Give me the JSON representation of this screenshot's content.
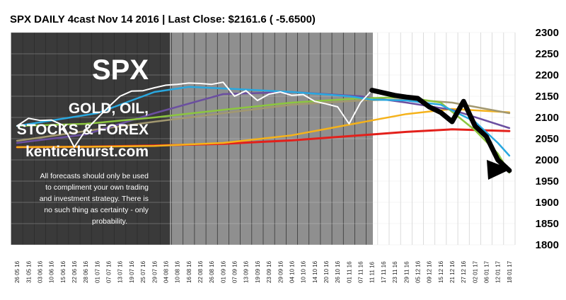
{
  "chart_data": {
    "type": "line",
    "title": "SPX DAILY 4cast  Nov 14 2016 | Last Close: $2161.6 ( -5.6500)",
    "ylim": [
      1800,
      2300
    ],
    "y_ticks": [
      2300,
      2250,
      2200,
      2150,
      2100,
      2050,
      2000,
      1950,
      1900,
      1850,
      1800
    ],
    "x_ticks": [
      "26 05 16",
      "31 05 16",
      "03 06 16",
      "10 06 16",
      "15 06 16",
      "22 06 16",
      "28 06 16",
      "01 07 16",
      "07 07 16",
      "13 07 16",
      "19 07 16",
      "25 07 16",
      "29 07 16",
      "04 08 16",
      "10 08 16",
      "16 08 16",
      "22 08 16",
      "26 08 16",
      "01 09 16",
      "07 09 16",
      "13 09 16",
      "19 09 16",
      "23 09 16",
      "29 09 16",
      "04 10 16",
      "10 10 16",
      "14 10 16",
      "20 10 16",
      "26 10 16",
      "01 11 16",
      "07 11 16",
      "11 11 16",
      "17 11 16",
      "23 11 16",
      "29 11 16",
      "05 12 16",
      "09 12 16",
      "15 12 16",
      "21 12 16",
      "27 12 16",
      "02 01 17",
      "06 01 17",
      "12 01 17",
      "18 01 17"
    ],
    "grid": true,
    "series": [
      {
        "color": "#ffffff",
        "x": [
          0,
          1,
          2,
          3,
          4,
          5,
          6,
          7,
          8,
          9,
          10,
          11,
          12,
          13,
          14,
          15,
          16,
          17,
          18,
          19,
          20,
          21,
          22,
          23,
          24,
          25,
          26,
          27,
          28,
          29,
          30,
          31
        ],
        "values": [
          2080,
          2098,
          2093,
          2094,
          2082,
          2030,
          2070,
          2098,
          2125,
          2150,
          2162,
          2163,
          2170,
          2176,
          2178,
          2181,
          2180,
          2178,
          2183,
          2150,
          2163,
          2140,
          2155,
          2160,
          2152,
          2154,
          2138,
          2132,
          2125,
          2085,
          2135,
          2164
        ]
      },
      {
        "color": "#000000",
        "x": [
          31,
          32,
          33,
          34,
          35,
          36,
          37,
          38,
          39,
          40,
          41,
          42,
          43
        ],
        "values": [
          2164,
          2158,
          2152,
          2148,
          2145,
          2125,
          2112,
          2090,
          2138,
          2080,
          2055,
          2000,
          1975
        ]
      },
      {
        "color": "#29a8e0",
        "x": [
          0,
          7,
          12,
          15,
          19,
          24,
          29,
          31,
          34,
          37,
          40,
          42,
          43
        ],
        "values": [
          2080,
          2110,
          2160,
          2172,
          2167,
          2160,
          2150,
          2142,
          2140,
          2130,
          2090,
          2040,
          2010
        ]
      },
      {
        "color": "#8cc63f",
        "x": [
          0,
          6,
          12,
          18,
          24,
          30,
          34,
          37,
          40,
          42,
          43
        ],
        "values": [
          2080,
          2085,
          2100,
          2118,
          2135,
          2145,
          2148,
          2135,
          2070,
          2015,
          1970
        ]
      },
      {
        "color": "#6b4fa0",
        "x": [
          0,
          6,
          12,
          18,
          24,
          30,
          34,
          38,
          43
        ],
        "values": [
          2040,
          2060,
          2110,
          2155,
          2160,
          2150,
          2135,
          2118,
          2075
        ]
      },
      {
        "color": "#a29870",
        "x": [
          0,
          6,
          12,
          18,
          24,
          30,
          34,
          38,
          43
        ],
        "values": [
          2045,
          2068,
          2090,
          2110,
          2130,
          2140,
          2143,
          2135,
          2110
        ]
      },
      {
        "color": "#f5b21a",
        "x": [
          0,
          6,
          12,
          18,
          24,
          30,
          34,
          38,
          43
        ],
        "values": [
          2030,
          2031,
          2033,
          2040,
          2058,
          2088,
          2108,
          2120,
          2112
        ]
      },
      {
        "color": "#e3201b",
        "x": [
          0,
          6,
          12,
          18,
          24,
          30,
          34,
          38,
          43
        ],
        "values": [
          2030,
          2031,
          2034,
          2038,
          2046,
          2058,
          2066,
          2072,
          2068
        ]
      }
    ]
  },
  "overlay": {
    "symbol": "SPX",
    "line1": "GOLD, OIL,",
    "line2": "STOCKS & FOREX",
    "site": "kenticehurst.com",
    "disclaimer": [
      "All forecasts should only be used",
      "to compliment your own trading",
      "and investment strategy. There is",
      "no such thing as certainty - only",
      "probability."
    ]
  },
  "colors": {
    "dark_panel": "#3a3a3a",
    "mid_panel": "#8f8f8f",
    "light_panel": "#b0b0b0",
    "grid": "#555555"
  }
}
